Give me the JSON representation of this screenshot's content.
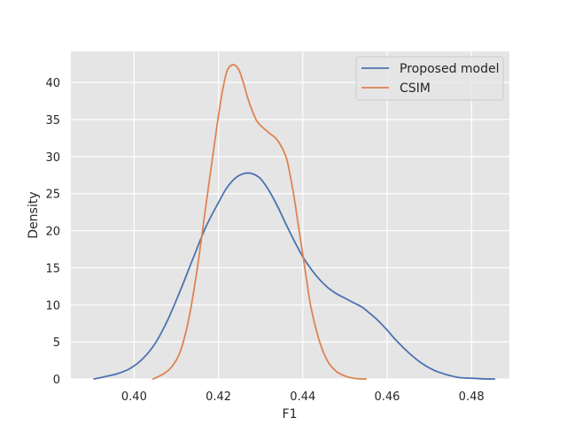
{
  "chart_data": {
    "type": "line",
    "xlabel": "F1",
    "ylabel": "Density",
    "xlim": [
      0.385,
      0.489
    ],
    "ylim": [
      0,
      44.2
    ],
    "xticks": [
      0.4,
      0.42,
      0.44,
      0.46,
      0.48
    ],
    "xtick_labels": [
      "0.40",
      "0.42",
      "0.44",
      "0.46",
      "0.48"
    ],
    "yticks": [
      0,
      5,
      10,
      15,
      20,
      25,
      30,
      35,
      40
    ],
    "ytick_labels": [
      "0",
      "5",
      "10",
      "15",
      "20",
      "25",
      "30",
      "35",
      "40"
    ],
    "grid": true,
    "legend_position": "top-right",
    "series": [
      {
        "name": "Proposed model",
        "color": "#4c72b0",
        "x": [
          0.3905,
          0.393,
          0.396,
          0.399,
          0.402,
          0.405,
          0.408,
          0.411,
          0.414,
          0.417,
          0.42,
          0.422,
          0.424,
          0.426,
          0.428,
          0.43,
          0.432,
          0.434,
          0.436,
          0.438,
          0.44,
          0.442,
          0.444,
          0.446,
          0.448,
          0.45,
          0.452,
          0.454,
          0.456,
          0.458,
          0.46,
          0.462,
          0.465,
          0.468,
          0.471,
          0.474,
          0.477,
          0.48,
          0.4835,
          0.4855
        ],
        "y": [
          0.0,
          0.3,
          0.7,
          1.4,
          2.7,
          4.8,
          8.0,
          12.0,
          16.3,
          20.5,
          23.8,
          25.8,
          27.1,
          27.7,
          27.7,
          27.0,
          25.4,
          23.3,
          20.9,
          18.6,
          16.5,
          14.8,
          13.4,
          12.3,
          11.5,
          10.9,
          10.3,
          9.7,
          8.8,
          7.8,
          6.6,
          5.3,
          3.6,
          2.2,
          1.2,
          0.6,
          0.2,
          0.1,
          0.0,
          0.0
        ]
      },
      {
        "name": "CSIM",
        "color": "#dd8452",
        "x": [
          0.4045,
          0.407,
          0.409,
          0.411,
          0.413,
          0.415,
          0.417,
          0.419,
          0.42,
          0.421,
          0.422,
          0.423,
          0.424,
          0.425,
          0.426,
          0.427,
          0.428,
          0.429,
          0.43,
          0.432,
          0.434,
          0.436,
          0.437,
          0.438,
          0.439,
          0.44,
          0.441,
          0.442,
          0.444,
          0.446,
          0.448,
          0.45,
          0.452,
          0.454,
          0.455
        ],
        "y": [
          0.0,
          0.7,
          1.7,
          3.8,
          8.2,
          15.0,
          23.3,
          31.5,
          35.5,
          39.0,
          41.5,
          42.3,
          42.3,
          41.5,
          39.8,
          37.8,
          36.2,
          34.9,
          34.2,
          33.2,
          32.2,
          30.0,
          27.5,
          24.3,
          20.5,
          16.8,
          13.0,
          9.5,
          5.0,
          2.3,
          1.0,
          0.4,
          0.1,
          0.0,
          0.0
        ]
      }
    ]
  }
}
